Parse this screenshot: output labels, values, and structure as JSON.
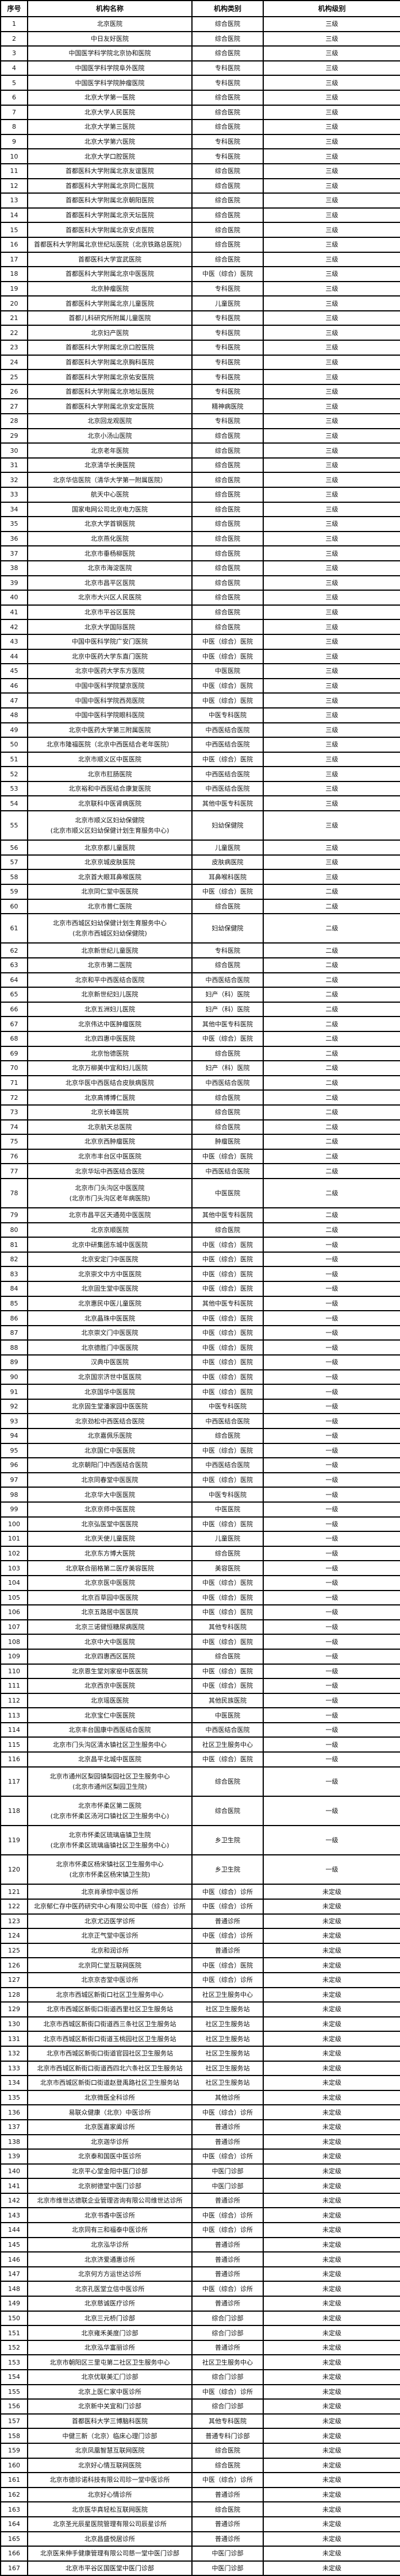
{
  "header": {
    "no": "序号",
    "name": "机构名称",
    "type": "机构类别",
    "level": "机构级别"
  },
  "rows": [
    [
      "1",
      "北京医院",
      "综合医院",
      "三级"
    ],
    [
      "2",
      "中日友好医院",
      "综合医院",
      "三级"
    ],
    [
      "3",
      "中国医学科学院北京协和医院",
      "综合医院",
      "三级"
    ],
    [
      "4",
      "中国医学科学院阜外医院",
      "专科医院",
      "三级"
    ],
    [
      "5",
      "中国医学科学院肿瘤医院",
      "专科医院",
      "三级"
    ],
    [
      "6",
      "北京大学第一医院",
      "综合医院",
      "三级"
    ],
    [
      "7",
      "北京大学人民医院",
      "综合医院",
      "三级"
    ],
    [
      "8",
      "北京大学第三医院",
      "综合医院",
      "三级"
    ],
    [
      "9",
      "北京大学第六医院",
      "专科医院",
      "三级"
    ],
    [
      "10",
      "北京大学口腔医院",
      "专科医院",
      "三级"
    ],
    [
      "11",
      "首都医科大学附属北京友谊医院",
      "综合医院",
      "三级"
    ],
    [
      "12",
      "首都医科大学附属北京同仁医院",
      "综合医院",
      "三级"
    ],
    [
      "13",
      "首都医科大学附属北京朝阳医院",
      "综合医院",
      "三级"
    ],
    [
      "14",
      "首都医科大学附属北京天坛医院",
      "综合医院",
      "三级"
    ],
    [
      "15",
      "首都医科大学附属北京安贞医院",
      "综合医院",
      "三级"
    ],
    [
      "16",
      "首都医科大学附属北京世纪坛医院（北京铁路总医院）",
      "综合医院",
      "三级"
    ],
    [
      "17",
      "首都医科大学宣武医院",
      "综合医院",
      "三级"
    ],
    [
      "18",
      "首都医科大学附属北京中医医院",
      "中医（综合）医院",
      "三级"
    ],
    [
      "19",
      "北京肿瘤医院",
      "专科医院",
      "三级"
    ],
    [
      "20",
      "首都医科大学附属北京儿童医院",
      "儿童医院",
      "三级"
    ],
    [
      "21",
      "首都儿科研究所附属儿童医院",
      "专科医院",
      "三级"
    ],
    [
      "22",
      "北京妇产医院",
      "专科医院",
      "三级"
    ],
    [
      "23",
      "首都医科大学附属北京口腔医院",
      "专科医院",
      "三级"
    ],
    [
      "24",
      "首都医科大学附属北京胸科医院",
      "专科医院",
      "三级"
    ],
    [
      "25",
      "首都医科大学附属北京佑安医院",
      "专科医院",
      "三级"
    ],
    [
      "26",
      "首都医科大学附属北京地坛医院",
      "专科医院",
      "三级"
    ],
    [
      "27",
      "首都医科大学附属北京安定医院",
      "精神病医院",
      "三级"
    ],
    [
      "28",
      "北京回龙观医院",
      "专科医院",
      "三级"
    ],
    [
      "29",
      "北京小汤山医院",
      "综合医院",
      "三级"
    ],
    [
      "30",
      "北京老年医院",
      "综合医院",
      "三级"
    ],
    [
      "31",
      "北京清华长庚医院",
      "综合医院",
      "三级"
    ],
    [
      "32",
      "北京华信医院（清华大学第一附属医院）",
      "综合医院",
      "三级"
    ],
    [
      "33",
      "航天中心医院",
      "综合医院",
      "三级"
    ],
    [
      "34",
      "国家电网公司北京电力医院",
      "综合医院",
      "三级"
    ],
    [
      "35",
      "北京大学首钢医院",
      "综合医院",
      "三级"
    ],
    [
      "36",
      "北京燕化医院",
      "综合医院",
      "三级"
    ],
    [
      "37",
      "北京市垂杨柳医院",
      "综合医院",
      "三级"
    ],
    [
      "38",
      "北京市海淀医院",
      "综合医院",
      "三级"
    ],
    [
      "39",
      "北京市昌平区医院",
      "综合医院",
      "三级"
    ],
    [
      "40",
      "北京市大兴区人民医院",
      "综合医院",
      "三级"
    ],
    [
      "41",
      "北京市平谷区医院",
      "综合医院",
      "三级"
    ],
    [
      "42",
      "北京大学国际医院",
      "综合医院",
      "三级"
    ],
    [
      "43",
      "中国中医科学院广安门医院",
      "中医（综合）医院",
      "三级"
    ],
    [
      "44",
      "北京中医药大学东直门医院",
      "中医（综合）医院",
      "三级"
    ],
    [
      "45",
      "北京中医药大学东方医院",
      "中医医院",
      "三级"
    ],
    [
      "46",
      "中国中医科学院望京医院",
      "中医（综合）医院",
      "三级"
    ],
    [
      "47",
      "中国中医科学院西苑医院",
      "中医（综合）医院",
      "三级"
    ],
    [
      "48",
      "中国中医科学院眼科医院",
      "中医专科医院",
      "三级"
    ],
    [
      "49",
      "北京中医药大学第三附属医院",
      "中西医结合医院",
      "三级"
    ],
    [
      "50",
      "北京市隆福医院（北京中西医结合老年医院）",
      "中西医结合医院",
      "三级"
    ],
    [
      "51",
      "北京市顺义区中医医院",
      "中医（综合）医院",
      "三级"
    ],
    [
      "52",
      "北京市肛肠医院",
      "中西医结合医院",
      "三级"
    ],
    [
      "53",
      "北京裕和中西医结合康复医院",
      "中西医结合医院",
      "三级"
    ],
    [
      "54",
      "北京联科中医肾病医院",
      "其他中医专科医院",
      "三级"
    ],
    [
      "55",
      [
        "北京市顺义区妇幼保健院",
        "(北京市顺义区妇幼保健计划生育服务中心)"
      ],
      "妇幼保健院",
      "三级"
    ],
    [
      "56",
      "北京京都儿童医院",
      "儿童医院",
      "三级"
    ],
    [
      "57",
      "北京京城皮肤医院",
      "皮肤病医院",
      "三级"
    ],
    [
      "58",
      "北京首大眼耳鼻喉医院",
      "耳鼻喉科医院",
      "三级"
    ],
    [
      "59",
      "北京同仁堂中医医院",
      "中医（综合）医院",
      "二级"
    ],
    [
      "60",
      "北京市普仁医院",
      "综合医院",
      "二级"
    ],
    [
      "61",
      [
        "北京市西城区妇幼保健计划生育服务中心",
        "(北京市西城区妇幼保健院)"
      ],
      "妇幼保健院",
      "二级"
    ],
    [
      "62",
      "北京新世纪儿童医院",
      "专科医院",
      "二级"
    ],
    [
      "63",
      "北京市第二医院",
      "综合医院",
      "二级"
    ],
    [
      "64",
      "北京和平中西医结合医院",
      "中西医结合医院",
      "二级"
    ],
    [
      "65",
      "北京新世纪妇儿医院",
      "妇产（科）医院",
      "二级"
    ],
    [
      "66",
      "北京五洲妇儿医院",
      "妇产（科）医院",
      "二级"
    ],
    [
      "67",
      "北京伟达中医肿瘤医院",
      "其他中医专科医院",
      "二级"
    ],
    [
      "68",
      "北京四惠中医医院",
      "中医（综合）医院",
      "二级"
    ],
    [
      "69",
      "北京怡德医院",
      "综合医院",
      "二级"
    ],
    [
      "70",
      "北京万柳美中宜和妇儿医院",
      "妇产（科）医院",
      "二级"
    ],
    [
      "71",
      "北京华医中西医结合皮肤病医院",
      "中西医结合医院",
      "二级"
    ],
    [
      "72",
      "北京高博博仁医院",
      "综合医院",
      "二级"
    ],
    [
      "73",
      "北京长峰医院",
      "综合医院",
      "二级"
    ],
    [
      "74",
      "北京航天总医院",
      "综合医院",
      "二级"
    ],
    [
      "75",
      "北京京西肿瘤医院",
      "肿瘤医院",
      "二级"
    ],
    [
      "76",
      "北京市丰台区中医医院",
      "中医（综合）医院",
      "二级"
    ],
    [
      "77",
      "北京华坛中西医结合医院",
      "中西医结合医院",
      "二级"
    ],
    [
      "78",
      [
        "北京市门头沟区中医医院",
        "(北京市门头沟区老年病医院)"
      ],
      "中医医院",
      "二级"
    ],
    [
      "79",
      "北京市昌平区天通苑中医医院",
      "其他中医专科医院",
      "二级"
    ],
    [
      "80",
      "北京京顺医院",
      "综合医院",
      "二级"
    ],
    [
      "81",
      "北京中研集团东城中医医院",
      "中医（综合）医院",
      "一级"
    ],
    [
      "82",
      "北京安定门中医医院",
      "中医（综合）医院",
      "一级"
    ],
    [
      "83",
      "北京崇文中方中医医院",
      "中医（综合）医院",
      "一级"
    ],
    [
      "84",
      "北京固生堂中医医院",
      "中医（综合）医院",
      "一级"
    ],
    [
      "85",
      "北京惠民中医儿童医院",
      "其他中医专科医院",
      "一级"
    ],
    [
      "86",
      "北京晶珠中医医院",
      "中医（综合）医院",
      "一级"
    ],
    [
      "87",
      "北京崇文门中医医院",
      "中医（综合）医院",
      "一级"
    ],
    [
      "88",
      "北京德胜门中医医院",
      "中医（综合）医院",
      "一级"
    ],
    [
      "89",
      "汉典中医医院",
      "中医（综合）医院",
      "一级"
    ],
    [
      "90",
      "北京国宗济世中医医院",
      "中医（综合）医院",
      "一级"
    ],
    [
      "91",
      "北京国华中医医院",
      "中医（综合）医院",
      "一级"
    ],
    [
      "92",
      "北京固生堂潘家园中医医院",
      "中医专科医院",
      "一级"
    ],
    [
      "93",
      "北京劲松中西医结合医院",
      "中西医结合医院",
      "一级"
    ],
    [
      "94",
      "北京嘉佩乐医院",
      "综合医院",
      "一级"
    ],
    [
      "95",
      "北京国仁中医医院",
      "中医（综合）医院",
      "一级"
    ],
    [
      "96",
      "北京朝阳门中西医结合医院",
      "中西医结合医院",
      "一级"
    ],
    [
      "97",
      "北京同春堂中医医院",
      "中医（综合）医院",
      "一级"
    ],
    [
      "98",
      "北京华大中医医院",
      "中医专科医院",
      "一级"
    ],
    [
      "99",
      "北京京师中医医院",
      "中医医院",
      "一级"
    ],
    [
      "100",
      "北京弘医堂中医医院",
      "中医（综合）医院",
      "一级"
    ],
    [
      "101",
      "北京天使儿童医院",
      "儿童医院",
      "一级"
    ],
    [
      "102",
      "北京东方博大医院",
      "综合医院",
      "一级"
    ],
    [
      "103",
      "北京联合丽格第二医疗美容医院",
      "美容医院",
      "一级"
    ],
    [
      "104",
      "北京京医中医医院",
      "中医（综合）医院",
      "一级"
    ],
    [
      "105",
      "北京百草园中医医院",
      "中医（综合）医院",
      "一级"
    ],
    [
      "106",
      "北京五路居中医医院",
      "中医（综合）医院",
      "一级"
    ],
    [
      "107",
      "北京三诺健恒糖尿病医院",
      "其他专科医院",
      "一级"
    ],
    [
      "108",
      "北京中大中医医院",
      "中医（综合）医院",
      "一级"
    ],
    [
      "109",
      "北京四惠西区医院",
      "综合医院",
      "一级"
    ],
    [
      "110",
      "北京恩生堂刘家窑中医医院",
      "中医（综合）医院",
      "一级"
    ],
    [
      "111",
      "北京西京中医医院",
      "中医（综合）医院",
      "一级"
    ],
    [
      "112",
      "北京瑶医医院",
      "其他民族医院",
      "一级"
    ],
    [
      "113",
      "北京宝仁中医医院",
      "中医医院",
      "一级"
    ],
    [
      "114",
      "北京丰台国康中西医结合医院",
      "中西医结合医院",
      "一级"
    ],
    [
      "115",
      "北京市门头沟区清水镇社区卫生服务中心",
      "社区卫生服务中心",
      "一级"
    ],
    [
      "116",
      "北京昌平北城中医医院",
      "中医（综合）医院",
      "一级"
    ],
    [
      "117",
      [
        "北京市通州区梨园镇梨园社区卫生服务中心",
        "(北京市通州区梨园卫生院)"
      ],
      "综合医院",
      "一级"
    ],
    [
      "118",
      [
        "北京市怀柔区第二医院",
        "(北京市怀柔区汤河口镇社区卫生服务中心)"
      ],
      "综合医院",
      "一级"
    ],
    [
      "119",
      [
        "北京市怀柔区琉璃庙镇卫生院",
        "(北京市怀柔区琉璃庙镇社区卫生服务中心)"
      ],
      "乡卫生院",
      "一级"
    ],
    [
      "120",
      [
        "北京市怀柔区杨宋镇社区卫生服务中心",
        "(北京市怀柔区杨宋镇卫生院)"
      ],
      "乡卫生院",
      "一级"
    ],
    [
      "121",
      "北京肖承悰中医诊所",
      "中医（综合）诊所",
      "未定级"
    ],
    [
      "122",
      "北京郁仁存中医药研究中心有限公司中医（综合）诊所",
      "中医（综合）诊所",
      "未定级"
    ],
    [
      "123",
      "北京尤迈医学诊所",
      "普通诊所",
      "未定级"
    ],
    [
      "124",
      "北京正气堂中医诊所",
      "中医（综合）诊所",
      "未定级"
    ],
    [
      "125",
      "北京和润诊所",
      "普通诊所",
      "未定级"
    ],
    [
      "126",
      "北京同仁堂互联网医院",
      "中医（综合）医院",
      "未定级"
    ],
    [
      "127",
      "北京京杏堂中医诊所",
      "中医（综合）诊所",
      "未定级"
    ],
    [
      "128",
      "北京市西城区新街口社区卫生服务中心",
      "社区卫生服务中心",
      "未定级"
    ],
    [
      "129",
      "北京市西城区新街口街道西里社区卫生服务站",
      "社区卫生服务站",
      "未定级"
    ],
    [
      "130",
      "北京市西城区新街口街道西三条社区卫生服务站",
      "社区卫生服务站",
      "未定级"
    ],
    [
      "131",
      "北京市西城区新街口街道玉桃园社区卫生服务站",
      "社区卫生服务站",
      "未定级"
    ],
    [
      "132",
      "北京市西城区新街口街道官园社区卫生服务站",
      "社区卫生服务站",
      "未定级"
    ],
    [
      "133",
      "北京市西城区新街口街道西四北六条社区卫生服务站",
      "社区卫生服务站",
      "未定级"
    ],
    [
      "134",
      "北京市西城区新街口街道赵登禹路社区卫生服务站",
      "社区卫生服务站",
      "未定级"
    ],
    [
      "135",
      "北京微医全科诊所",
      "其他诊所",
      "未定级"
    ],
    [
      "136",
      "易联众健康（北京）中医诊所",
      "中医（综合）诊所",
      "未定级"
    ],
    [
      "137",
      "北京医嘉家阖诊所",
      "普通诊所",
      "未定级"
    ],
    [
      "138",
      "北京迦华诊所",
      "普通诊所",
      "未定级"
    ],
    [
      "139",
      "北京泰和国医中医诊所",
      "中医（综合）诊所",
      "未定级"
    ],
    [
      "140",
      "北京平心堂金阳中医门诊部",
      "中医门诊部",
      "未定级"
    ],
    [
      "141",
      "北京树德堂中医门诊部",
      "中医门诊部",
      "未定级"
    ],
    [
      "142",
      "北京市维世达德联企业管理咨询有限公司维世达诊所",
      "普通诊所",
      "未定级"
    ],
    [
      "143",
      "北京书香中医诊所",
      "中医（综合）诊所",
      "未定级"
    ],
    [
      "144",
      "北京同有三和福泰中医诊所",
      "中医（综合）诊所",
      "未定级"
    ],
    [
      "145",
      "北京泓华诊所",
      "普通诊所",
      "未定级"
    ],
    [
      "146",
      "北京济爱通惠诊所",
      "普通诊所",
      "未定级"
    ],
    [
      "147",
      "北京何方方运世达诊所",
      "普通诊所",
      "未定级"
    ],
    [
      "148",
      "北京孔医堂立信中医诊所",
      "中医（综合）诊所",
      "未定级"
    ],
    [
      "149",
      "北京慈诚医疗诊所",
      "普通诊所",
      "未定级"
    ],
    [
      "150",
      "北京三元桥门诊部",
      "综合门诊部",
      "未定级"
    ],
    [
      "151",
      "北京雍禾美度门诊部",
      "综合门诊部",
      "未定级"
    ],
    [
      "152",
      "北京泓华富丽诊所",
      "普通诊所",
      "未定级"
    ],
    [
      "153",
      "北京市朝阳区三里屯第二社区卫生服务中心",
      "社区卫生服务中心",
      "未定级"
    ],
    [
      "154",
      "北京优联美汇门诊部",
      "综合门诊部",
      "未定级"
    ],
    [
      "155",
      "北京上医仁家中医诊所",
      "中医（综合）诊所",
      "未定级"
    ],
    [
      "156",
      "北京新中关宜和门诊部",
      "综合门诊部",
      "未定级"
    ],
    [
      "157",
      "首都医科大学三博脑科医院",
      "其他专科医院",
      "未定级"
    ],
    [
      "158",
      "中健三新（北京）临床心理门诊部",
      "普通专科门诊部",
      "未定级"
    ],
    [
      "159",
      "北京凤凰智慧互联网医院",
      "综合医院",
      "未定级"
    ],
    [
      "160",
      "北京好心情互联网医院",
      "综合医院",
      "未定级"
    ],
    [
      "161",
      "北京市德珍诺科技有限公司珍一堂中医诊所",
      "中医（综合）诊所",
      "未定级"
    ],
    [
      "162",
      "北京好心情诊所",
      "普通诊所",
      "未定级"
    ],
    [
      "163",
      "北京医华真轻松互联网医院",
      "综合医院",
      "未定级"
    ],
    [
      "164",
      "北京圣光辰星医院管理有限公司辰星诊所",
      "普通诊所",
      "未定级"
    ],
    [
      "165",
      "北京昌盛悦居诊所",
      "普通诊所",
      "未定级"
    ],
    [
      "166",
      "北京医来伸手健康管理有限公司慈一堂中医门诊部",
      "中医门诊部",
      "未定级"
    ],
    [
      "167",
      "北京市平谷区国医堂中医门诊部",
      "中医门诊部",
      "未定级"
    ]
  ]
}
